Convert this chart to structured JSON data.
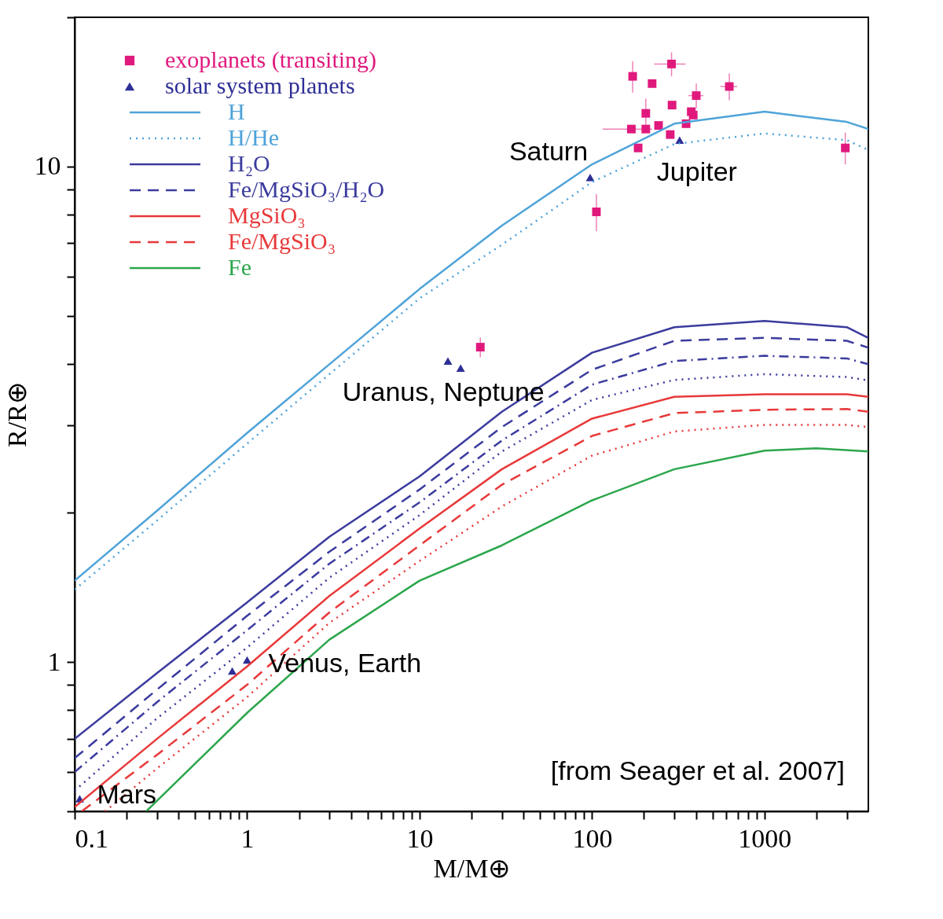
{
  "chart_data": {
    "type": "line",
    "xlabel": "M/M⊕",
    "ylabel": "R/R⊕",
    "log": "xy",
    "grid": false,
    "legend": "top left",
    "xlim": [
      0.1,
      4000
    ],
    "ylim": [
      0.5,
      20
    ],
    "xticks": [
      0.1,
      {
        "value": 0.2,
        "label": null
      },
      {
        "value": 0.3,
        "label": null
      },
      {
        "value": 0.4,
        "label": null
      },
      {
        "value": 0.5,
        "label": null
      },
      {
        "value": 0.6,
        "label": null
      },
      {
        "value": 0.7,
        "label": null
      },
      {
        "value": 0.8,
        "label": null
      },
      {
        "value": 0.9,
        "label": null
      },
      1,
      {
        "value": 2,
        "label": null
      },
      {
        "value": 3,
        "label": null
      },
      {
        "value": 4,
        "label": null
      },
      {
        "value": 5,
        "label": null
      },
      {
        "value": 6,
        "label": null
      },
      {
        "value": 7,
        "label": null
      },
      {
        "value": 8,
        "label": null
      },
      {
        "value": 9,
        "label": null
      },
      10,
      {
        "value": 20,
        "label": null
      },
      {
        "value": 30,
        "label": null
      },
      {
        "value": 40,
        "label": null
      },
      {
        "value": 50,
        "label": null
      },
      {
        "value": 60,
        "label": null
      },
      {
        "value": 70,
        "label": null
      },
      {
        "value": 80,
        "label": null
      },
      {
        "value": 90,
        "label": null
      },
      100,
      {
        "value": 200,
        "label": null
      },
      {
        "value": 300,
        "label": null
      },
      {
        "value": 400,
        "label": null
      },
      {
        "value": 500,
        "label": null
      },
      {
        "value": 600,
        "label": null
      },
      {
        "value": 700,
        "label": null
      },
      {
        "value": 800,
        "label": null
      },
      {
        "value": 900,
        "label": null
      },
      1000,
      {
        "value": 2000,
        "label": null
      },
      {
        "value": 3000,
        "label": null
      }
    ],
    "yticks": [
      {
        "value": 0.5,
        "label": null
      },
      {
        "value": 0.6,
        "label": null
      },
      {
        "value": 0.7,
        "label": null
      },
      {
        "value": 0.8,
        "label": null
      },
      {
        "value": 0.9,
        "label": null
      },
      1,
      {
        "value": 2,
        "label": null
      },
      {
        "value": 3,
        "label": null
      },
      {
        "value": 4,
        "label": null
      },
      {
        "value": 5,
        "label": null
      },
      {
        "value": 6,
        "label": null
      },
      {
        "value": 7,
        "label": null
      },
      {
        "value": 8,
        "label": null
      },
      {
        "value": 9,
        "label": null
      },
      10,
      {
        "value": 20,
        "label": null
      }
    ],
    "series": [
      {
        "name": "exoplanets (transiting)",
        "type": "scatter",
        "marker": "square",
        "color": "#e0197d",
        "x": [
          172,
          289,
          223,
          625,
          402,
          291,
          376,
          386,
          205,
          351,
          243,
          169,
          205,
          284,
          185,
          106,
          2940,
          22.5
        ],
        "values": [
          15.2,
          16.1,
          14.7,
          14.5,
          13.9,
          13.3,
          12.9,
          12.7,
          12.8,
          12.2,
          12.1,
          11.9,
          11.9,
          11.6,
          10.9,
          8.1,
          10.9,
          4.32
        ],
        "errors": [
          1.1,
          0.9,
          null,
          0.9,
          0.8,
          null,
          null,
          null,
          0.9,
          null,
          null,
          null,
          null,
          null,
          null,
          0.7,
          0.8,
          0.2
        ],
        "xerrors": [
          null,
          60,
          null,
          70,
          40,
          null,
          null,
          null,
          null,
          null,
          null,
          54,
          null,
          null,
          null,
          null,
          null,
          null
        ]
      },
      {
        "name": "solar system planets",
        "type": "scatter",
        "marker": "triangle",
        "color": "#2e2e96",
        "x": [
          0.107,
          0.82,
          1,
          14.6,
          17.3,
          97.5,
          322
        ],
        "values": [
          0.53,
          0.96,
          1.01,
          4.05,
          3.92,
          9.5,
          11.3
        ]
      },
      {
        "name": "H",
        "line_style": "solid",
        "color": "#4fa3d9",
        "x": [
          0.1,
          0.3,
          1,
          3,
          10,
          30,
          100,
          300,
          1000,
          3000,
          4000
        ],
        "values": [
          1.46,
          2.02,
          2.9,
          3.99,
          5.66,
          7.6,
          10.1,
          12.2,
          12.9,
          12.3,
          11.9
        ]
      },
      {
        "name": "H/He",
        "line_style": "dotted",
        "color": "#4fa3d9",
        "x": [
          0.1,
          0.3,
          1,
          3,
          10,
          30,
          100,
          300,
          1000,
          3000,
          4000
        ],
        "values": [
          1.4,
          1.93,
          2.76,
          3.81,
          5.42,
          6.95,
          9.3,
          11.1,
          11.66,
          11.3,
          10.8
        ]
      },
      {
        "name": "H₂O",
        "line_style": "solid",
        "color": "#3b3b9e",
        "x": [
          0.1,
          0.3,
          1,
          3,
          10,
          30,
          100,
          300,
          1000,
          3000,
          4000
        ],
        "values": [
          0.7,
          0.95,
          1.32,
          1.79,
          2.37,
          3.2,
          4.21,
          4.74,
          4.88,
          4.74,
          4.51
        ]
      },
      {
        "name": "Fe/MgSiO₃/H₂O",
        "line_style": "dashed",
        "color": "#3b3b9e",
        "x": [
          0.1,
          0.3,
          1,
          3,
          10,
          30,
          100,
          300,
          1000,
          3000,
          4000
        ],
        "values": [
          0.64,
          0.88,
          1.24,
          1.67,
          2.23,
          2.98,
          3.89,
          4.45,
          4.51,
          4.45,
          4.31
        ]
      },
      {
        "line_style": "dashdot",
        "color": "#3b3b9e",
        "x": [
          0.1,
          0.3,
          1,
          3,
          10,
          30,
          100,
          300,
          1000,
          3000,
          4000
        ],
        "values": [
          0.6,
          0.83,
          1.16,
          1.58,
          2.1,
          2.8,
          3.63,
          4.05,
          4.15,
          4.1,
          3.99
        ]
      },
      {
        "line_style": "dotted",
        "color": "#3b3b9e",
        "x": [
          0.1,
          0.3,
          1,
          3,
          10,
          30,
          100,
          300,
          1000,
          3000,
          4000
        ],
        "values": [
          0.55,
          0.77,
          1.07,
          1.48,
          1.98,
          2.66,
          3.38,
          3.71,
          3.81,
          3.76,
          3.7
        ]
      },
      {
        "name": "MgSiO₃",
        "line_style": "solid",
        "color": "#e8393a",
        "x": [
          0.1,
          0.3,
          1,
          3,
          10,
          30,
          100,
          300,
          1000,
          3000,
          4000
        ],
        "values": [
          0.51,
          0.7,
          0.98,
          1.36,
          1.86,
          2.45,
          3.1,
          3.43,
          3.47,
          3.47,
          3.43
        ]
      },
      {
        "name": "Fe/MgSiO₃",
        "line_style": "dashed",
        "color": "#e8393a",
        "x": [
          0.11,
          0.3,
          1,
          3,
          10,
          30,
          100,
          300,
          1000,
          3000,
          4000
        ],
        "values": [
          0.5,
          0.65,
          0.9,
          1.26,
          1.72,
          2.28,
          2.86,
          3.18,
          3.23,
          3.24,
          3.2
        ]
      },
      {
        "line_style": "dotted",
        "color": "#e8393a",
        "x": [
          0.15,
          0.3,
          1,
          3,
          10,
          30,
          100,
          300,
          1000,
          3000,
          4000
        ],
        "values": [
          0.5,
          0.61,
          0.85,
          1.2,
          1.6,
          2.06,
          2.61,
          2.92,
          3.01,
          3.01,
          2.98
        ]
      },
      {
        "name": "Fe",
        "line_style": "solid",
        "color": "#2ca64c",
        "x": [
          0.26,
          1,
          3,
          10,
          30,
          100,
          300,
          1000,
          2000,
          4000
        ],
        "values": [
          0.5,
          0.79,
          1.11,
          1.46,
          1.72,
          2.12,
          2.45,
          2.67,
          2.7,
          2.66
        ]
      }
    ],
    "annotations": [
      {
        "text": "Saturn",
        "x": 97.5,
        "y": 9.5
      },
      {
        "text": "Jupiter",
        "x": 322,
        "y": 11.3
      },
      {
        "text": "Uranus, Neptune",
        "x": 17.3,
        "y": 3.92
      },
      {
        "text": "Venus, Earth",
        "x": 1,
        "y": 1.01
      },
      {
        "text": "Mars",
        "x": 0.107,
        "y": 0.53
      },
      "[from Seager et al. 2007]"
    ]
  }
}
